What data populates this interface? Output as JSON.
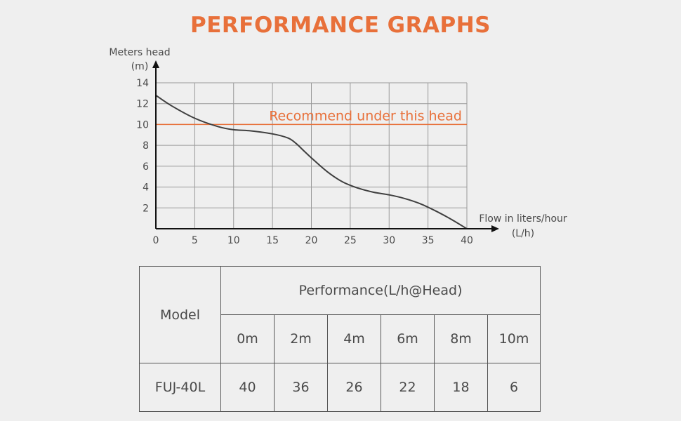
{
  "title": "PERFORMANCE GRAPHS",
  "colors": {
    "accent": "#e8703a",
    "text": "#4a4a4a",
    "grid": "#9a9a9a",
    "curve": "#3f3f3f",
    "background": "#efefef"
  },
  "chart_data": {
    "type": "line",
    "title": "PERFORMANCE GRAPHS",
    "ylabel_line1": "Meters head",
    "ylabel_line2": "(m)",
    "xlabel_line1": "Flow in liters/hour",
    "xlabel_line2": "(L/h)",
    "xlim": [
      0,
      40
    ],
    "ylim": [
      0,
      14
    ],
    "xticks": [
      0,
      5,
      10,
      15,
      20,
      25,
      30,
      35,
      40
    ],
    "yticks": [
      2,
      4,
      6,
      8,
      10,
      12,
      14
    ],
    "grid": true,
    "series": [
      {
        "name": "head vs flow",
        "x": [
          0,
          2,
          5,
          8,
          10,
          12,
          15,
          17,
          18,
          19,
          20,
          22,
          24,
          26,
          28,
          30,
          32,
          34,
          36,
          38,
          40
        ],
        "y": [
          12.8,
          11.8,
          10.6,
          9.8,
          9.5,
          9.4,
          9.1,
          8.7,
          8.2,
          7.5,
          6.8,
          5.5,
          4.5,
          3.9,
          3.5,
          3.25,
          2.9,
          2.4,
          1.7,
          0.9,
          0.0
        ]
      }
    ],
    "reference_line": {
      "y": 10,
      "label": "Recommend under this head"
    }
  },
  "table": {
    "model_header": "Model",
    "performance_header": "Performance(L/h@Head)",
    "heads": [
      "0m",
      "2m",
      "4m",
      "6m",
      "8m",
      "10m"
    ],
    "rows": [
      {
        "model": "FUJ-40L",
        "values": [
          "40",
          "36",
          "26",
          "22",
          "18",
          "6"
        ]
      }
    ]
  }
}
